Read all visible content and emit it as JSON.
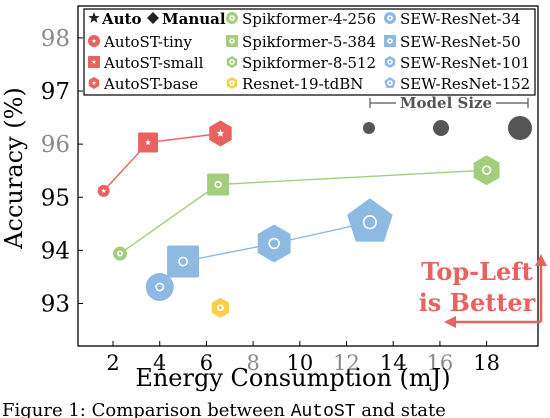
{
  "chart_data": {
    "type": "scatter",
    "xlabel": "Energy Consumption (mJ)",
    "ylabel": "Accuracy (%)",
    "xlim": [
      0.5,
      20.2
    ],
    "ylim": [
      92.2,
      98.6
    ],
    "x_ticks": [
      {
        "value": 2,
        "label": "2"
      },
      {
        "value": 4,
        "label": "4"
      },
      {
        "value": 6,
        "label": "6"
      },
      {
        "value": 8,
        "label": "8"
      },
      {
        "value": 10,
        "label": "10"
      },
      {
        "value": 12,
        "label": "12"
      },
      {
        "value": 14,
        "label": "14"
      },
      {
        "value": 16,
        "label": "16"
      },
      {
        "value": 18,
        "label": "18"
      }
    ],
    "y_ticks": [
      {
        "value": 93,
        "label": "93"
      },
      {
        "value": 94,
        "label": "94"
      },
      {
        "value": 95,
        "label": "95"
      },
      {
        "value": 96,
        "label": "96"
      },
      {
        "value": 97,
        "label": "97"
      },
      {
        "value": 98,
        "label": "98"
      }
    ],
    "grid": false,
    "legend_placement": "top",
    "legend_header": {
      "auto": "Auto",
      "manual": "Manual"
    },
    "series": [
      {
        "name": "AutoST-tiny",
        "color": "#e8635f",
        "shape": "circle",
        "points": [
          {
            "x": 1.6,
            "y": 95.12
          }
        ]
      },
      {
        "name": "AutoST-small",
        "color": "#e8635f",
        "shape": "square",
        "points": [
          {
            "x": 3.5,
            "y": 96.03
          }
        ]
      },
      {
        "name": "AutoST-base",
        "color": "#e8635f",
        "shape": "hexagon",
        "points": [
          {
            "x": 6.6,
            "y": 96.2
          }
        ]
      },
      {
        "name": "Spikformer-4-256",
        "color": "#a3cf7c",
        "shape": "circle",
        "points": [
          {
            "x": 2.3,
            "y": 93.94
          }
        ]
      },
      {
        "name": "Spikformer-5-384",
        "color": "#a3cf7c",
        "shape": "square",
        "points": [
          {
            "x": 6.5,
            "y": 95.24
          }
        ]
      },
      {
        "name": "Spikformer-8-512",
        "color": "#a3cf7c",
        "shape": "hexagon",
        "points": [
          {
            "x": 18.0,
            "y": 95.51
          }
        ]
      },
      {
        "name": "Resnet-19-tdBN",
        "color": "#f8cf4b",
        "shape": "hexagon",
        "points": [
          {
            "x": 6.6,
            "y": 92.92
          }
        ]
      },
      {
        "name": "SEW-ResNet-34",
        "color": "#8db9e3",
        "shape": "circle",
        "points": [
          {
            "x": 4.0,
            "y": 93.31
          }
        ]
      },
      {
        "name": "SEW-ResNet-50",
        "color": "#8db9e3",
        "shape": "square",
        "points": [
          {
            "x": 5.0,
            "y": 93.79
          }
        ]
      },
      {
        "name": "SEW-ResNet-101",
        "color": "#8db9e3",
        "shape": "hexagon",
        "points": [
          {
            "x": 8.9,
            "y": 94.13
          }
        ]
      },
      {
        "name": "SEW-ResNet-152",
        "color": "#8db9e3",
        "shape": "pentagon",
        "points": [
          {
            "x": 13.0,
            "y": 94.53
          }
        ]
      }
    ],
    "connections": [
      {
        "series": [
          "AutoST-tiny",
          "AutoST-small",
          "AutoST-base"
        ],
        "color": "#e8635f"
      },
      {
        "series": [
          "Spikformer-4-256",
          "Spikformer-5-384",
          "Spikformer-8-512"
        ],
        "color": "#a3cf7c"
      },
      {
        "series": [
          "SEW-ResNet-34",
          "SEW-ResNet-50",
          "SEW-ResNet-101",
          "SEW-ResNet-152"
        ],
        "color": "#8db9e3"
      }
    ],
    "size_scale": {
      "label": "Model Size",
      "levels": [
        "small",
        "medium",
        "large"
      ]
    },
    "annotation": {
      "lines": [
        "Top-Left",
        "is Better"
      ],
      "color": "#e8635f"
    }
  },
  "caption": {
    "prefix": "Figure 1: Comparison between ",
    "code": "AutoST",
    "suffix": " and state"
  }
}
